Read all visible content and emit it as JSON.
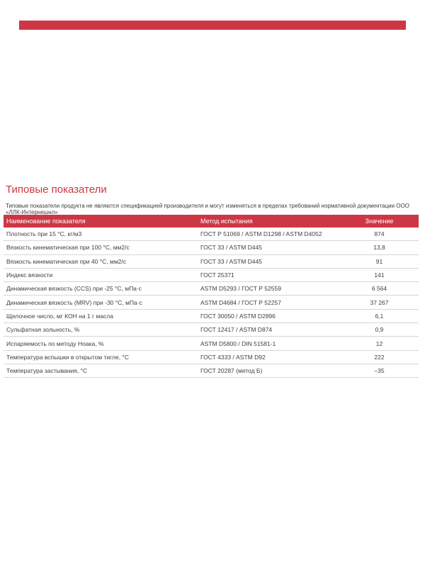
{
  "theme": {
    "accent_red": "#cd3745",
    "separator_gray": "#d6d6d6",
    "text_dark": "#3e3e3e"
  },
  "page": {
    "title": "Типовые показатели",
    "subtitle": "Типовые показатели продукта не являются спецификацией производителя и могут изменяться в пределах требований нормативной документации ООО «ЛЛК-Интернешнл»"
  },
  "table": {
    "columns": [
      "Наименование показателя",
      "Метод испытания",
      "Значение"
    ],
    "rows": [
      {
        "name": "Плотность при 15 °С, кг/м3",
        "method": "ГОСТ Р 51069 / ASTM D1298 / ASTM D4052",
        "value": "874"
      },
      {
        "name": "Вязкость кинематическая при 100 °С, мм2/с",
        "method": "ГОСТ 33 / ASTM D445",
        "value": "13,8"
      },
      {
        "name": "Вязкость кинематическая при 40 °С, мм2/с",
        "method": "ГОСТ 33 / ASTM D445",
        "value": "91"
      },
      {
        "name": "Индекс вязкости",
        "method": "ГОСТ 25371",
        "value": "141"
      },
      {
        "name": "Динамическая вязкость (CCS) при -25 °С, мПа·с",
        "method": "ASTM D5293 / ГОСТ Р 52559",
        "value": "6 564"
      },
      {
        "name": "Динамическая вязкость (MRV) при -30 °С, мПа·с",
        "method": "ASTM D4684 / ГОСТ Р 52257",
        "value": "37 267"
      },
      {
        "name": "Щелочное число, мг КОН на 1 г масла",
        "method": "ГОСТ 30050 / ASTM D2896",
        "value": "6,1"
      },
      {
        "name": "Сульфатная зольность, %",
        "method": "ГОСТ 12417 / ASTM D874",
        "value": "0,9"
      },
      {
        "name": "Испаряемость по методу Ноака, %",
        "method": "ASTM D5800 / DIN 51581-1",
        "value": "12"
      },
      {
        "name": "Температура вспышки в открытом тигле, °С",
        "method": "ГОСТ 4333 / ASTM D92",
        "value": "222"
      },
      {
        "name": "Температура застывания, °С",
        "method": "ГОСТ 20287 (метод Б)",
        "value": "–35"
      }
    ]
  }
}
